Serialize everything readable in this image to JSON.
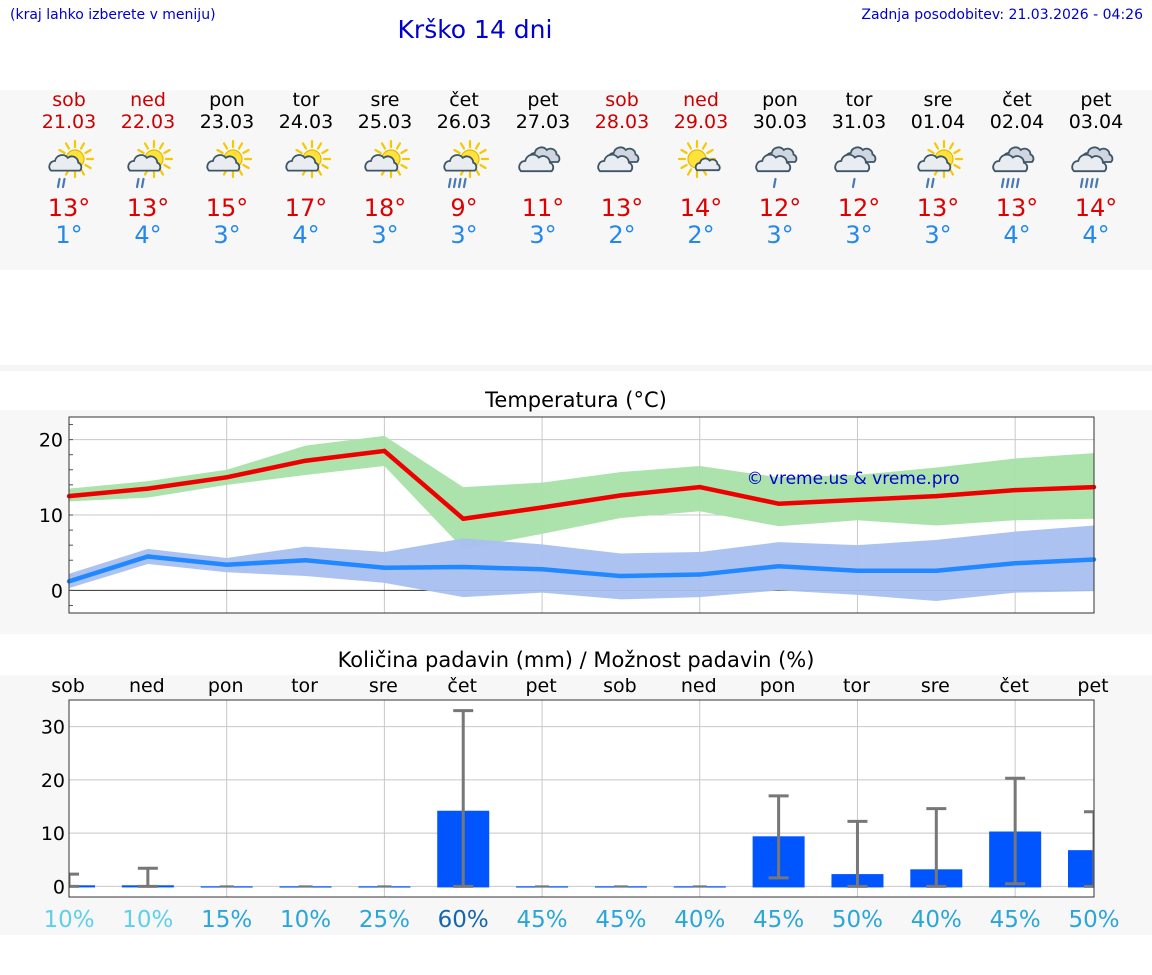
{
  "header": {
    "hint": "(kraj lahko izberete v meniju)",
    "title": "Krško 14 dni",
    "updated": "Zadnja posodobitev: 21.03.2026 - 04:26"
  },
  "days": [
    {
      "name": "sob",
      "date": "21.03",
      "weekend": true,
      "icon": "sun-cloud-light-rain-icon",
      "icon_kind": "sun_rain",
      "max": "13°",
      "min": "1°"
    },
    {
      "name": "ned",
      "date": "22.03",
      "weekend": true,
      "icon": "sun-cloud-light-rain-icon",
      "icon_kind": "sun_rain",
      "max": "13°",
      "min": "4°"
    },
    {
      "name": "pon",
      "date": "23.03",
      "weekend": false,
      "icon": "sun-cloud-icon",
      "icon_kind": "sun_cloud",
      "max": "15°",
      "min": "3°"
    },
    {
      "name": "tor",
      "date": "24.03",
      "weekend": false,
      "icon": "sun-cloud-icon",
      "icon_kind": "sun_cloud",
      "max": "17°",
      "min": "4°"
    },
    {
      "name": "sre",
      "date": "25.03",
      "weekend": false,
      "icon": "sun-cloud-icon",
      "icon_kind": "sun_cloud",
      "max": "18°",
      "min": "3°"
    },
    {
      "name": "čet",
      "date": "26.03",
      "weekend": false,
      "icon": "sun-cloud-rain-icon",
      "icon_kind": "sun_heavyrain",
      "max": "9°",
      "min": "3°"
    },
    {
      "name": "pet",
      "date": "27.03",
      "weekend": false,
      "icon": "cloud-icon",
      "icon_kind": "clouds",
      "max": "11°",
      "min": "3°"
    },
    {
      "name": "sob",
      "date": "28.03",
      "weekend": true,
      "icon": "cloud-icon",
      "icon_kind": "clouds",
      "max": "13°",
      "min": "2°"
    },
    {
      "name": "ned",
      "date": "29.03",
      "weekend": true,
      "icon": "sun-small-cloud-icon",
      "icon_kind": "sun_smallcloud",
      "max": "14°",
      "min": "2°"
    },
    {
      "name": "pon",
      "date": "30.03",
      "weekend": false,
      "icon": "cloud-light-rain-icon",
      "icon_kind": "cloud_rain",
      "max": "12°",
      "min": "3°"
    },
    {
      "name": "tor",
      "date": "31.03",
      "weekend": false,
      "icon": "cloud-light-rain-icon",
      "icon_kind": "cloud_rain",
      "max": "12°",
      "min": "3°"
    },
    {
      "name": "sre",
      "date": "01.04",
      "weekend": false,
      "icon": "sun-cloud-light-rain-icon",
      "icon_kind": "sun_rain",
      "max": "13°",
      "min": "3°"
    },
    {
      "name": "čet",
      "date": "02.04",
      "weekend": false,
      "icon": "cloud-rain-icon",
      "icon_kind": "cloud_heavyrain",
      "max": "13°",
      "min": "4°"
    },
    {
      "name": "pet",
      "date": "03.04",
      "weekend": false,
      "icon": "cloud-rain-icon",
      "icon_kind": "cloud_heavyrain",
      "max": "14°",
      "min": "4°"
    }
  ],
  "chart_data": [
    {
      "type": "line",
      "title": "Temperatura (°C)",
      "watermark": "© vreme.us & vreme.pro",
      "ylim": [
        -3,
        23
      ],
      "yticks": [
        "0",
        "10",
        "20"
      ],
      "ytick_values": [
        0,
        10,
        20
      ],
      "x": [
        0,
        1,
        2,
        3,
        4,
        5,
        6,
        7,
        8,
        9,
        10,
        11,
        12,
        13
      ],
      "series": [
        {
          "name": "max",
          "color": "#ee0000",
          "values": [
            12.5,
            13.5,
            15,
            17.2,
            18.5,
            9.5,
            11,
            12.6,
            13.7,
            11.5,
            12,
            12.5,
            13.3,
            13.7
          ]
        },
        {
          "name": "min",
          "color": "#2288ff",
          "values": [
            1.2,
            4.5,
            3.4,
            4,
            3,
            3.1,
            2.8,
            1.9,
            2.1,
            3.2,
            2.6,
            2.6,
            3.6,
            4.1
          ]
        }
      ],
      "bands": [
        {
          "name": "max range",
          "color": "#a8e2a8",
          "low": [
            11.8,
            12.3,
            14,
            15.3,
            16.5,
            5.5,
            7.5,
            9.6,
            10.5,
            8.5,
            9.3,
            8.6,
            9.3,
            9.5
          ],
          "high": [
            13.5,
            14.5,
            16,
            19.2,
            20.5,
            13.7,
            14.3,
            15.7,
            16.5,
            15,
            15.3,
            16.3,
            17.5,
            18.2
          ]
        },
        {
          "name": "min range",
          "color": "#a8c0f0",
          "low": [
            0.3,
            3.5,
            2.4,
            1.9,
            1,
            -0.9,
            -0.3,
            -1.2,
            -0.9,
            0,
            -0.6,
            -1.4,
            -0.3,
            -0.1
          ],
          "high": [
            2.2,
            5.5,
            4.3,
            5.8,
            5.1,
            6.9,
            6.1,
            4.9,
            5.1,
            6.4,
            6,
            6.7,
            7.8,
            8.6
          ]
        }
      ]
    },
    {
      "type": "bar",
      "title": "Količina padavin (mm) / Možnost padavin (%)",
      "ylim": [
        -2,
        35
      ],
      "yticks": [
        "0",
        "10",
        "20",
        "30"
      ],
      "ytick_values": [
        0,
        10,
        20,
        30
      ],
      "categories": [
        "sob",
        "ned",
        "pon",
        "tor",
        "sre",
        "čet",
        "pet",
        "sob",
        "ned",
        "pon",
        "tor",
        "sre",
        "čet",
        "pet"
      ],
      "values": [
        0.2,
        0.2,
        0,
        0,
        0,
        14.2,
        0,
        0,
        0,
        9.4,
        2.3,
        3.2,
        10.3,
        6.8
      ],
      "error_low": [
        0,
        0,
        0,
        0,
        0,
        0,
        0,
        0,
        0,
        1.6,
        0,
        0,
        0.5,
        0
      ],
      "error_high": [
        2.3,
        3.4,
        0,
        0,
        0,
        33,
        0,
        0,
        0,
        17,
        12.2,
        14.6,
        20.3,
        14
      ],
      "probability": [
        "10%",
        "10%",
        "15%",
        "10%",
        "25%",
        "60%",
        "45%",
        "45%",
        "40%",
        "45%",
        "50%",
        "40%",
        "45%",
        "50%"
      ],
      "probability_colors": [
        "#5fd0e8",
        "#5fd0e8",
        "#2aa6d8",
        "#2aa6d8",
        "#2aa6d8",
        "#1566b0",
        "#2aa6d8",
        "#2aa6d8",
        "#2aa6d8",
        "#2aa6d8",
        "#2aa6d8",
        "#2aa6d8",
        "#2aa6d8",
        "#2aa6d8"
      ],
      "bar_color": "#0055ff"
    }
  ]
}
